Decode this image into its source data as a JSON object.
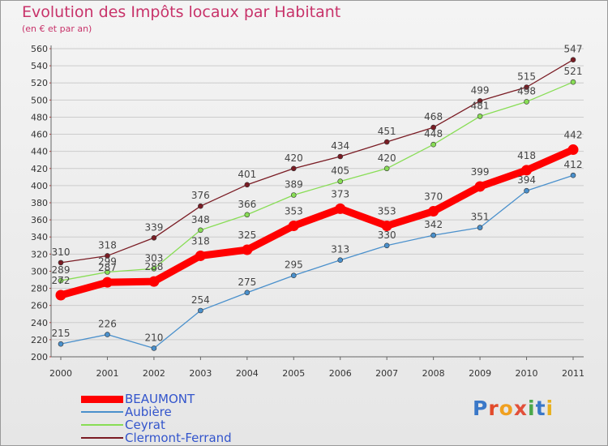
{
  "title": "Evolution des Impôts locaux par Habitant",
  "subtitle": "(en € et par an)",
  "logo_text": "Proxiti",
  "chart_data": {
    "type": "line",
    "title": "Evolution des Impôts locaux par Habitant",
    "subtitle": "(en € et par an)",
    "xlabel": "",
    "ylabel": "",
    "ylim": [
      200,
      560
    ],
    "ytick_step": 20,
    "grid": true,
    "legend_position": "bottom-left",
    "categories": [
      "2000",
      "2001",
      "2002",
      "2003",
      "2004",
      "2005",
      "2006",
      "2007",
      "2008",
      "2009",
      "2010",
      "2011"
    ],
    "series": [
      {
        "name": "BEAUMONT",
        "color": "#ff0000",
        "values": [
          272,
          287,
          288,
          318,
          325,
          353,
          373,
          353,
          370,
          399,
          418,
          442
        ]
      },
      {
        "name": "Aubière",
        "color": "#4a90cc",
        "values": [
          215,
          226,
          210,
          254,
          275,
          295,
          313,
          330,
          342,
          351,
          394,
          412
        ]
      },
      {
        "name": "Ceyrat",
        "color": "#88dd55",
        "values": [
          289,
          299,
          303,
          348,
          366,
          389,
          405,
          420,
          448,
          481,
          498,
          521
        ]
      },
      {
        "name": "Clermont-Ferrand",
        "color": "#7a1c24",
        "values": [
          310,
          318,
          339,
          376,
          401,
          420,
          434,
          451,
          468,
          499,
          515,
          547
        ]
      }
    ]
  }
}
